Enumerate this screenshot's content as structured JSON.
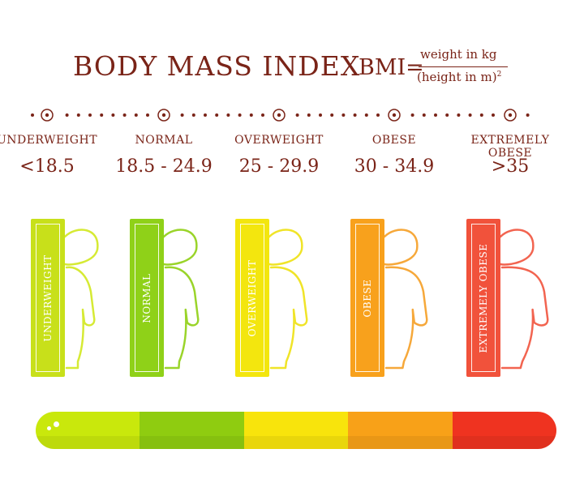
{
  "title": "BODY MASS INDEX",
  "formula": {
    "lhs": "BMI=",
    "numerator": "weight in kg",
    "denominator": "(height in m)",
    "exponent": "2"
  },
  "categories": [
    {
      "label": "UNDERWEIGHT",
      "range": "<18.5",
      "book_label": "UNDERWEIGHT",
      "color": "#c8e01a",
      "line": "#d6ea34"
    },
    {
      "label": "NORMAL",
      "range": "18.5 - 24.9",
      "book_label": "NORMAL",
      "color": "#8fd118",
      "line": "#9ad42a"
    },
    {
      "label": "OVERWEIGHT",
      "range": "25 - 29.9",
      "book_label": "OVERWEIGHT",
      "color": "#f3e60e",
      "line": "#f0e428"
    },
    {
      "label": "OBESE",
      "range": "30 - 34.9",
      "book_label": "OBESE",
      "color": "#f8a11c",
      "line": "#f6a83a"
    },
    {
      "label": "EXTREMELY OBESE",
      "range": ">35",
      "book_label": "EXTREMELY OBESE",
      "color": "#f1523b",
      "line": "#f26450"
    }
  ],
  "scale_colors": [
    "#c9e80c",
    "#8fcc10",
    "#f8e40c",
    "#f8a118",
    "#ef3320"
  ],
  "text_color": "#7a2418"
}
